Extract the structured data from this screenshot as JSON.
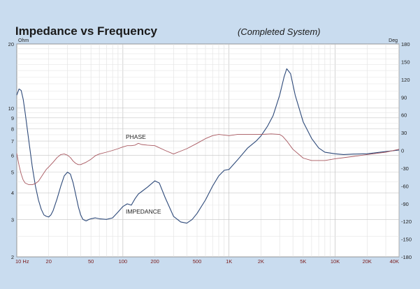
{
  "chart_data": {
    "type": "line",
    "title": "Impedance vs Frequency",
    "subtitle": "(Completed System)",
    "x_scale": "log",
    "xlim": [
      10,
      40000
    ],
    "x_ticks": [
      10,
      20,
      50,
      100,
      200,
      500,
      1000,
      2000,
      5000,
      10000,
      20000,
      40000
    ],
    "x_tick_labels": [
      "10 Hz",
      "20",
      "50",
      "100",
      "200",
      "500",
      "1K",
      "2K",
      "5K",
      "10K",
      "20K",
      "40K"
    ],
    "y_left": {
      "unit": "Ohm",
      "scale": "log",
      "range": [
        2,
        20
      ],
      "ticks": [
        2,
        3,
        4,
        5,
        6,
        7,
        8,
        9,
        10,
        20
      ],
      "tick_labels": [
        "2",
        "3",
        "4",
        "5",
        "6",
        "7",
        "8",
        "9",
        "10",
        "20"
      ]
    },
    "y_right": {
      "unit": "Deg",
      "scale": "linear",
      "range": [
        -180,
        180
      ],
      "ticks": [
        -180,
        -150,
        -120,
        -90,
        -60,
        -30,
        0,
        30,
        60,
        90,
        120,
        150,
        180
      ],
      "tick_labels": [
        "-180",
        "-150",
        "-120",
        "-90",
        "-60",
        "-30",
        "0",
        "30",
        "60",
        "90",
        "120",
        "150",
        "180"
      ]
    },
    "grid": true,
    "series": [
      {
        "name": "IMPEDANCE",
        "axis": "left",
        "color": "#2e4a7a",
        "x": [
          10,
          10.5,
          11,
          11.5,
          12,
          13,
          14,
          15,
          16,
          17,
          18,
          19,
          20,
          21,
          22,
          24,
          26,
          28,
          30,
          32,
          34,
          36,
          38,
          40,
          42,
          45,
          48,
          50,
          55,
          60,
          70,
          80,
          90,
          100,
          110,
          120,
          130,
          140,
          150,
          170,
          200,
          220,
          250,
          300,
          350,
          400,
          450,
          500,
          600,
          700,
          800,
          900,
          1000,
          1200,
          1500,
          1800,
          2000,
          2300,
          2600,
          3000,
          3300,
          3500,
          3800,
          4200,
          5000,
          6000,
          7000,
          8000,
          10000,
          12000,
          15000,
          20000,
          30000,
          40000
        ],
        "values": [
          11.5,
          12.3,
          12.1,
          11.0,
          9.5,
          7.0,
          5.3,
          4.3,
          3.7,
          3.35,
          3.15,
          3.1,
          3.08,
          3.15,
          3.3,
          3.75,
          4.3,
          4.8,
          5.0,
          4.9,
          4.45,
          3.9,
          3.45,
          3.15,
          3.0,
          2.95,
          3.0,
          3.02,
          3.05,
          3.02,
          3.0,
          3.05,
          3.25,
          3.45,
          3.55,
          3.5,
          3.75,
          3.95,
          4.05,
          4.25,
          4.55,
          4.45,
          3.8,
          3.1,
          2.92,
          2.88,
          3.0,
          3.2,
          3.7,
          4.3,
          4.8,
          5.1,
          5.15,
          5.7,
          6.5,
          7.0,
          7.4,
          8.2,
          9.2,
          11.5,
          14.0,
          15.3,
          14.5,
          11.5,
          8.6,
          7.2,
          6.5,
          6.2,
          6.1,
          6.05,
          6.08,
          6.1,
          6.25,
          6.35
        ]
      },
      {
        "name": "PHASE",
        "axis": "right",
        "color": "#a8575f",
        "x": [
          10,
          10.5,
          11,
          11.5,
          12,
          13,
          14,
          15,
          16,
          17,
          18,
          19,
          20,
          22,
          24,
          26,
          28,
          30,
          32,
          34,
          36,
          38,
          40,
          45,
          50,
          55,
          60,
          70,
          80,
          90,
          100,
          110,
          120,
          130,
          140,
          150,
          170,
          200,
          250,
          300,
          400,
          500,
          600,
          700,
          800,
          1000,
          1200,
          1500,
          2000,
          2500,
          3000,
          3200,
          3500,
          4000,
          5000,
          6000,
          8000,
          10000,
          15000,
          20000,
          30000,
          40000
        ],
        "values": [
          -5,
          -25,
          -40,
          -50,
          -55,
          -58,
          -58,
          -56,
          -52,
          -45,
          -38,
          -32,
          -28,
          -20,
          -12,
          -7,
          -6,
          -8,
          -12,
          -18,
          -22,
          -24,
          -24,
          -20,
          -15,
          -9,
          -6,
          -3,
          0,
          3,
          6,
          8,
          8,
          9,
          12,
          10,
          9,
          8,
          0,
          -6,
          3,
          12,
          20,
          25,
          27,
          25,
          27,
          27,
          27,
          28,
          27,
          24,
          16,
          2,
          -13,
          -17,
          -17,
          -14,
          -10,
          -7,
          -3,
          2
        ]
      }
    ]
  }
}
